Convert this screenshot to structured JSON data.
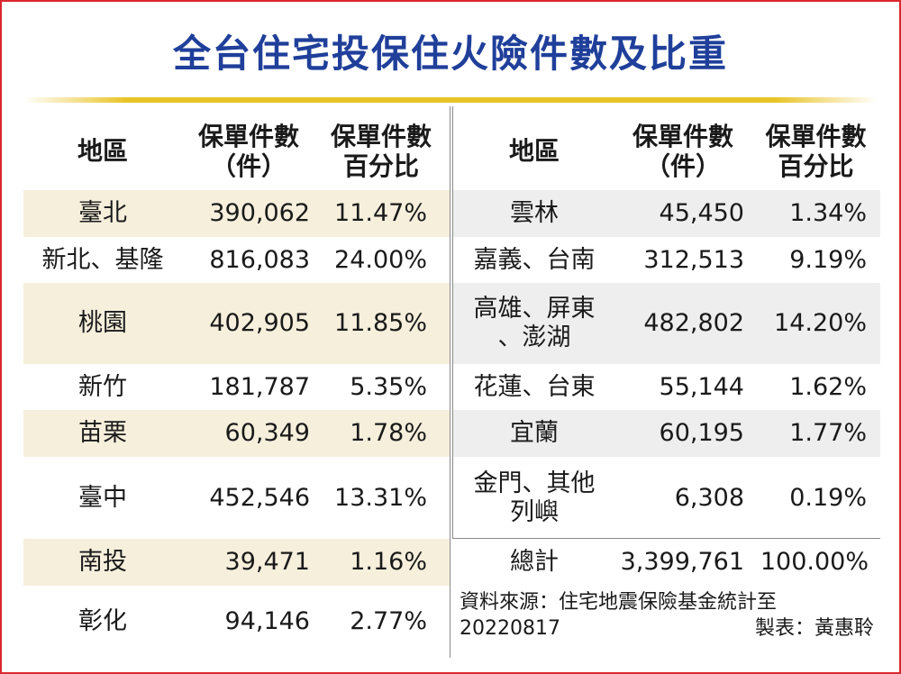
{
  "title": "全台住宅投保住火險件數及比重",
  "headers": {
    "region": "地區",
    "count_line1": "保單件數",
    "count_line2": "（件）",
    "pct_line1": "保單件數",
    "pct_line2": "百分比"
  },
  "left_rows": [
    {
      "region": "臺北",
      "count": "390,062",
      "pct": "11.47%"
    },
    {
      "region": "新北、基隆",
      "count": "816,083",
      "pct": "24.00%"
    },
    {
      "region": "桃園",
      "count": "402,905",
      "pct": "11.85%"
    },
    {
      "region": "新竹",
      "count": "181,787",
      "pct": "5.35%"
    },
    {
      "region": "苗栗",
      "count": "60,349",
      "pct": "1.78%"
    },
    {
      "region": "臺中",
      "count": "452,546",
      "pct": "13.31%"
    },
    {
      "region": "南投",
      "count": "39,471",
      "pct": "1.16%"
    },
    {
      "region": "彰化",
      "count": "94,146",
      "pct": "2.77%"
    }
  ],
  "right_rows": [
    {
      "region": "雲林",
      "count": "45,450",
      "pct": "1.34%"
    },
    {
      "region": "嘉義、台南",
      "count": "312,513",
      "pct": "9.19%"
    },
    {
      "region_line1": "高雄、屏東",
      "region_line2": "、澎湖",
      "count": "482,802",
      "pct": "14.20%"
    },
    {
      "region": "花蓮、台東",
      "count": "55,144",
      "pct": "1.62%"
    },
    {
      "region": "宜蘭",
      "count": "60,195",
      "pct": "1.77%"
    },
    {
      "region_line1": "金門、其他",
      "region_line2": "列嶼",
      "count": "6,308",
      "pct": "0.19%"
    }
  ],
  "total": {
    "region": "總計",
    "count": "3,399,761",
    "pct": "100.00%"
  },
  "source": {
    "line1": "資料來源：住宅地震保險基金統計至",
    "date": "20220817",
    "credit": "製表：黃惠聆"
  },
  "colors": {
    "title": "#1f3f9a",
    "border": "#d9282f",
    "rule": "#e9c428",
    "band_left": "#f6efdc",
    "band_right": "#eeeeee"
  }
}
